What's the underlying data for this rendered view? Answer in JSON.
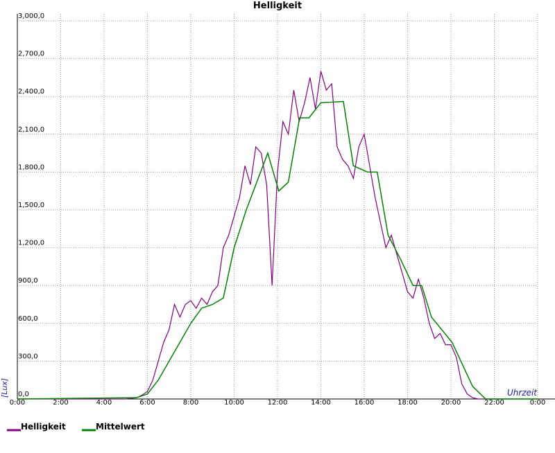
{
  "chart_data": {
    "type": "line",
    "title": "Helligkeit",
    "ylabel": "[Lux]",
    "xlabel": "Uhrzeit",
    "xlim": [
      0,
      24
    ],
    "ylim": [
      0,
      3000
    ],
    "grid": true,
    "legend": "bottom-left",
    "xticks": [
      {
        "value": 0,
        "label": "0:00"
      },
      {
        "value": 2,
        "label": "2:00"
      },
      {
        "value": 4,
        "label": "4:00"
      },
      {
        "value": 6,
        "label": "6:00"
      },
      {
        "value": 8,
        "label": "8:00"
      },
      {
        "value": 10,
        "label": "10:00"
      },
      {
        "value": 12,
        "label": "12:00"
      },
      {
        "value": 14,
        "label": "14:00"
      },
      {
        "value": 16,
        "label": "16:00"
      },
      {
        "value": 18,
        "label": "18:00"
      },
      {
        "value": 20,
        "label": "20:00"
      },
      {
        "value": 22,
        "label": "22:00"
      },
      {
        "value": 24,
        "label": "0:00"
      }
    ],
    "yticks": [
      {
        "value": 0,
        "label": "0,0"
      },
      {
        "value": 300,
        "label": "300,0"
      },
      {
        "value": 600,
        "label": "600,0"
      },
      {
        "value": 900,
        "label": "900,0"
      },
      {
        "value": 1200,
        "label": "1,200,0"
      },
      {
        "value": 1500,
        "label": "1,500,0"
      },
      {
        "value": 1800,
        "label": "1,800,0"
      },
      {
        "value": 2100,
        "label": "2,100,0"
      },
      {
        "value": 2400,
        "label": "2,400,0"
      },
      {
        "value": 2700,
        "label": "2,700,0"
      },
      {
        "value": 3000,
        "label": "3,000,0"
      }
    ],
    "series": [
      {
        "name": "Helligkeit",
        "color": "#800080",
        "x": [
          0,
          5,
          5.5,
          5.75,
          6,
          6.25,
          6.5,
          6.75,
          7,
          7.25,
          7.5,
          7.75,
          8,
          8.25,
          8.5,
          8.75,
          9,
          9.25,
          9.5,
          9.75,
          10,
          10.25,
          10.5,
          10.75,
          11,
          11.25,
          11.5,
          11.75,
          12,
          12.25,
          12.5,
          12.75,
          13,
          13.25,
          13.5,
          13.75,
          14,
          14.25,
          14.5,
          14.75,
          15,
          15.25,
          15.5,
          15.75,
          16,
          16.25,
          16.5,
          16.75,
          17,
          17.25,
          17.5,
          17.75,
          18,
          18.25,
          18.5,
          18.75,
          19,
          19.25,
          19.5,
          19.75,
          20,
          20.25,
          20.5,
          20.75,
          21,
          21.25,
          24
        ],
        "values": [
          0,
          0,
          10,
          30,
          60,
          150,
          300,
          450,
          550,
          750,
          650,
          750,
          780,
          720,
          800,
          750,
          850,
          900,
          1200,
          1300,
          1450,
          1600,
          1850,
          1700,
          2000,
          1950,
          1700,
          900,
          1800,
          2200,
          2100,
          2450,
          2200,
          2350,
          2550,
          2300,
          2600,
          2450,
          2500,
          2000,
          1900,
          1850,
          1750,
          2000,
          2100,
          1850,
          1600,
          1400,
          1200,
          1300,
          1150,
          1000,
          850,
          800,
          950,
          800,
          600,
          480,
          520,
          430,
          430,
          330,
          120,
          40,
          10,
          0,
          0
        ]
      },
      {
        "name": "Mittelwert",
        "color": "#008000",
        "x": [
          0,
          5.5,
          6,
          6.5,
          7,
          7.5,
          8,
          8.5,
          9,
          9.5,
          10,
          10.56,
          11.55,
          12.06,
          12.5,
          13.02,
          13.45,
          14,
          15.04,
          15.5,
          16.15,
          16.6,
          17.1,
          17.7,
          18.25,
          18.65,
          19.1,
          20.05,
          21,
          21.6,
          24
        ],
        "values": [
          0,
          10,
          40,
          150,
          300,
          450,
          600,
          720,
          750,
          800,
          1200,
          1500,
          1950,
          1650,
          1720,
          2230,
          2230,
          2350,
          2360,
          1850,
          1800,
          1800,
          1300,
          1100,
          900,
          900,
          650,
          450,
          100,
          0,
          0
        ]
      }
    ]
  }
}
